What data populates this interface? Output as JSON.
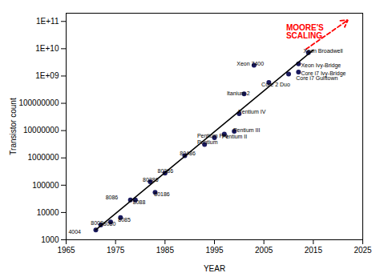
{
  "chart_data": {
    "type": "scatter",
    "xlabel": "YEAR",
    "ylabel": "Transistor count",
    "log": "y",
    "xlim": [
      1965,
      2025
    ],
    "ylim": [
      1000,
      200000000000
    ],
    "xticks": [
      1965,
      1975,
      1985,
      1995,
      2005,
      2015,
      2025
    ],
    "yticks": [
      1000,
      10000,
      100000,
      1000000,
      10000000,
      100000000,
      {
        "value": 1000000000,
        "label": "1E+09"
      },
      {
        "value": 10000000000,
        "label": "1E+10"
      },
      {
        "value": 100000000000,
        "label": "1E+11"
      }
    ],
    "series": [
      {
        "type": "scatter",
        "color": "#1a1a5e",
        "x": [
          1971,
          1972,
          1974,
          1976,
          1978,
          1979,
          1982,
          1985,
          1983,
          1989,
          1993,
          1995,
          1997,
          1999,
          2000,
          2001,
          2006,
          2003,
          2010,
          2012,
          2012,
          2014
        ],
        "values": [
          2300,
          3500,
          4500,
          6500,
          29000,
          29000,
          134000,
          275000,
          55000,
          1200000,
          3100000,
          5500000,
          7500000,
          9500000,
          42000000,
          220000000,
          582000000,
          2500000000,
          1170000000,
          1400000000,
          2800000000,
          7200000000
        ]
      },
      {
        "type": "line",
        "color": "black",
        "x": [
          1971,
          2015
        ],
        "values": [
          2300,
          9000000000
        ]
      }
    ],
    "annotations": [
      {
        "text": "4004",
        "x": 1968.0,
        "y": 1900,
        "align": "right"
      },
      {
        "text": "8008",
        "x": 1970.0,
        "y": 4200,
        "align": "left"
      },
      {
        "text": "8080",
        "x": 1972.5,
        "y": 3800,
        "align": "left"
      },
      {
        "text": "8085",
        "x": 1975.5,
        "y": 5500,
        "align": "left"
      },
      {
        "text": "8086",
        "x": 1975.5,
        "y": 35000,
        "align": "right"
      },
      {
        "text": "8088",
        "x": 1978.5,
        "y": 23000,
        "align": "left"
      },
      {
        "text": "80286",
        "x": 1980.5,
        "y": 160000,
        "align": "left"
      },
      {
        "text": "80386",
        "x": 1983.5,
        "y": 320000,
        "align": "left"
      },
      {
        "text": "80186",
        "x": 1982.8,
        "y": 46000,
        "align": "left"
      },
      {
        "text": "80486",
        "x": 1988.0,
        "y": 1450000,
        "align": "left"
      },
      {
        "text": "Pentium",
        "x": 1991.5,
        "y": 3700000,
        "align": "left"
      },
      {
        "text": "Pentium Pro",
        "x": 1991.5,
        "y": 6500000,
        "align": "left"
      },
      {
        "text": "Pentium II",
        "x": 1996.5,
        "y": 6000000,
        "align": "left"
      },
      {
        "text": "Pentium III",
        "x": 1998.8,
        "y": 10500000,
        "align": "left"
      },
      {
        "text": "Pentium IV",
        "x": 1999.8,
        "y": 50000000,
        "align": "left"
      },
      {
        "text": "Itanium 2",
        "x": 1997.5,
        "y": 230000000,
        "align": "left"
      },
      {
        "text": "Core 2 Duo",
        "x": 2004.5,
        "y": 480000000,
        "align": "left"
      },
      {
        "text": "Xeon 7400",
        "x": 1999.5,
        "y": 2800000000,
        "align": "left"
      },
      {
        "text": "Core i7 Gulftown",
        "x": 2011.5,
        "y": 820000000,
        "align": "left"
      },
      {
        "text": "Core i7 Ivy-Bridge",
        "x": 2012.5,
        "y": 1250000000,
        "align": "left"
      },
      {
        "text": "Xeon Ivy-Bridge",
        "x": 2012.5,
        "y": 2500000000,
        "align": "left"
      },
      {
        "text": "Xeon Broadwell",
        "x": 2013.0,
        "y": 8000000000,
        "align": "left"
      },
      {
        "text": "MOORE'S\nSCALING",
        "x": 2009.5,
        "y": 41686938347.0,
        "align": "left",
        "color": "red"
      }
    ],
    "arrow": {
      "x1": 2013.5,
      "y1": 9549925860.21,
      "x2": 2022.0,
      "y2": 112201845430.2,
      "color": "red",
      "line_style": "dashed"
    }
  }
}
